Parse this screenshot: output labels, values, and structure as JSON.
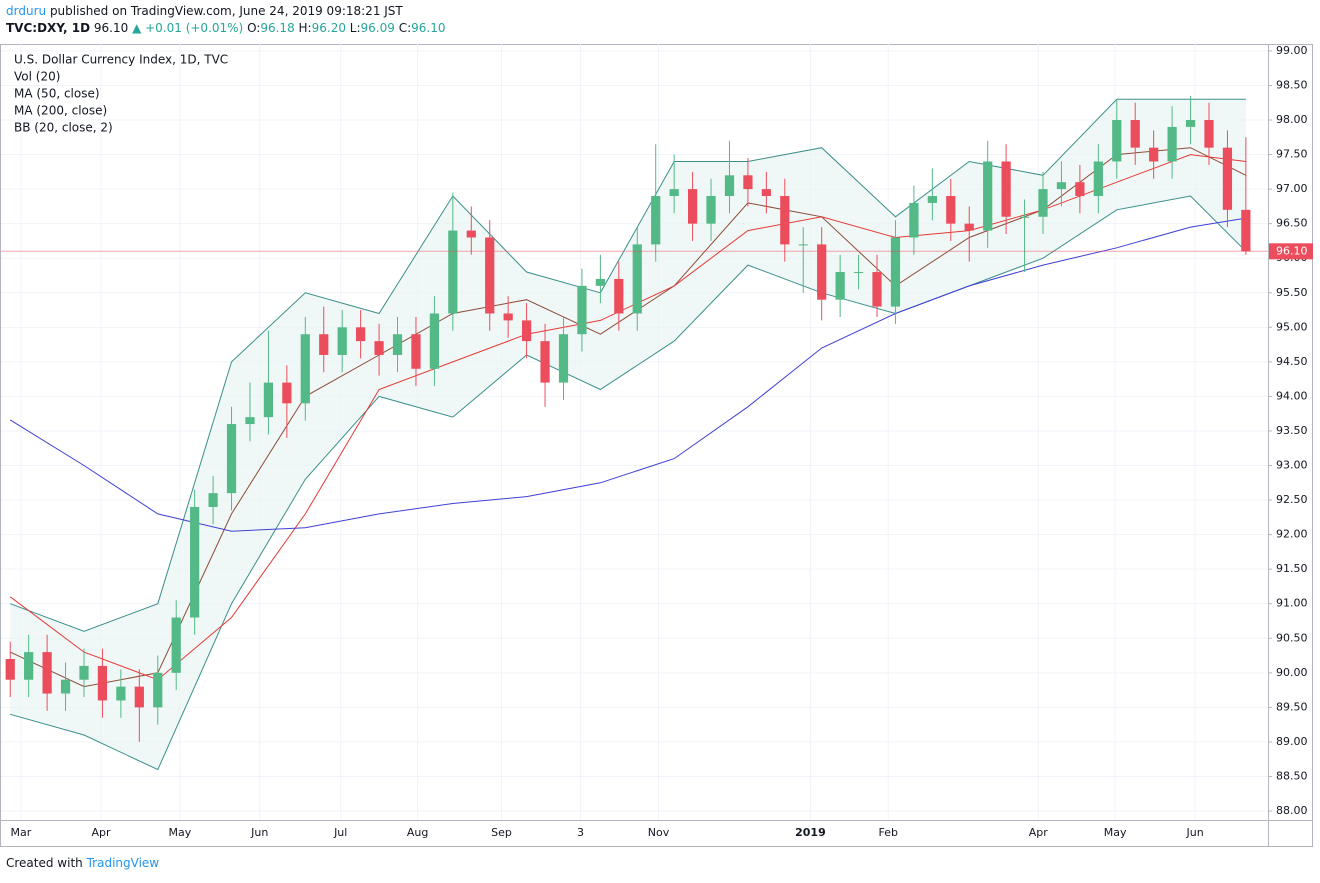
{
  "header": {
    "author": "drduru",
    "published": "published on TradingView.com, June 24, 2019 09:18:21 JST",
    "symbol": "TVC:DXY, 1D",
    "last": "96.10",
    "change": "▲ +0.01 (+0.01%)",
    "ohlc": [
      {
        "key": "O:",
        "value": "96.18"
      },
      {
        "key": "H:",
        "value": "96.20"
      },
      {
        "key": "L:",
        "value": "96.09"
      },
      {
        "key": "C:",
        "value": "96.10"
      }
    ]
  },
  "footer": {
    "created": "Created with",
    "brand": "TradingView"
  },
  "chart_data": {
    "type": "candlestick",
    "title": "U.S. Dollar Currency Index, 1D, TVC",
    "indicators": [
      "Vol (20)"
    ],
    "up_color": "#53b987",
    "down_color": "#eb4d5c",
    "x": [
      0,
      1,
      2,
      3,
      4,
      5,
      6,
      7,
      8,
      9,
      10,
      11,
      12,
      13,
      14,
      15,
      16,
      17,
      18,
      19,
      20,
      21,
      22,
      23,
      24,
      25,
      26,
      27,
      28,
      29,
      30,
      31,
      32,
      33,
      34,
      35,
      36,
      37,
      38,
      39,
      40,
      41,
      42,
      43,
      44,
      45,
      46,
      47,
      48,
      49,
      50,
      51,
      52,
      53,
      54,
      55,
      56,
      57,
      58,
      59,
      60,
      61,
      62,
      63,
      64,
      65,
      66,
      67
    ],
    "open": [
      90.2,
      89.9,
      90.3,
      89.7,
      89.9,
      90.1,
      89.6,
      89.8,
      89.5,
      90.0,
      90.8,
      92.4,
      92.6,
      93.6,
      93.7,
      94.2,
      93.9,
      94.9,
      94.6,
      95.0,
      94.8,
      94.6,
      94.9,
      94.4,
      95.2,
      96.4,
      96.3,
      95.2,
      95.1,
      94.8,
      94.2,
      94.9,
      95.6,
      95.7,
      95.2,
      96.2,
      96.9,
      97.0,
      96.5,
      96.9,
      97.2,
      97.0,
      96.9,
      96.2,
      96.2,
      95.4,
      95.8,
      95.8,
      95.3,
      96.3,
      96.8,
      96.9,
      96.5,
      96.4,
      97.4,
      96.6,
      96.6,
      97.0,
      97.1,
      96.9,
      97.4,
      98.0,
      97.6,
      97.4,
      97.9,
      98.0,
      97.6,
      96.7
    ],
    "high": [
      90.45,
      90.55,
      90.55,
      90.15,
      90.35,
      90.35,
      90.05,
      90.05,
      90.25,
      91.05,
      92.65,
      92.85,
      93.85,
      94.2,
      94.95,
      94.45,
      95.15,
      95.3,
      95.25,
      95.25,
      95.05,
      95.15,
      95.15,
      95.45,
      96.95,
      96.75,
      96.55,
      95.45,
      95.35,
      95.05,
      95.15,
      95.85,
      96.05,
      95.95,
      96.45,
      97.65,
      97.5,
      97.25,
      97.15,
      97.7,
      97.45,
      97.25,
      97.15,
      96.45,
      96.45,
      96.05,
      96.05,
      96.05,
      96.55,
      97.05,
      97.3,
      97.15,
      96.75,
      97.7,
      97.65,
      96.85,
      97.25,
      97.4,
      97.35,
      97.65,
      98.3,
      98.25,
      97.85,
      98.2,
      98.35,
      98.25,
      97.85,
      97.75
    ],
    "low": [
      89.65,
      89.65,
      89.45,
      89.45,
      89.65,
      89.35,
      89.35,
      89.0,
      89.25,
      89.75,
      90.55,
      92.15,
      92.35,
      93.35,
      93.45,
      93.4,
      93.65,
      94.35,
      94.35,
      94.55,
      94.3,
      94.35,
      94.15,
      94.15,
      94.95,
      96.05,
      94.95,
      94.85,
      94.55,
      93.85,
      93.95,
      94.65,
      95.35,
      94.95,
      94.95,
      95.95,
      96.65,
      96.25,
      96.25,
      96.65,
      96.75,
      96.65,
      95.95,
      95.5,
      95.1,
      95.15,
      95.55,
      95.15,
      95.05,
      96.05,
      96.55,
      96.25,
      95.95,
      96.15,
      96.35,
      95.8,
      96.35,
      96.75,
      96.65,
      96.65,
      97.15,
      97.35,
      97.15,
      97.15,
      97.65,
      97.35,
      96.45,
      96.05
    ],
    "close": [
      89.9,
      90.3,
      89.7,
      89.9,
      90.1,
      89.6,
      89.8,
      89.5,
      90.0,
      90.8,
      92.4,
      92.6,
      93.6,
      93.7,
      94.2,
      93.9,
      94.9,
      94.6,
      95.0,
      94.8,
      94.6,
      94.9,
      94.4,
      95.2,
      96.4,
      96.3,
      95.2,
      95.1,
      94.8,
      94.2,
      94.9,
      95.6,
      95.7,
      95.2,
      96.2,
      96.9,
      97.0,
      96.5,
      96.9,
      97.2,
      97.0,
      96.9,
      96.2,
      96.2,
      95.4,
      95.8,
      95.8,
      95.3,
      96.3,
      96.8,
      96.9,
      96.5,
      96.4,
      97.4,
      96.6,
      96.6,
      97.0,
      97.1,
      96.9,
      97.4,
      98.0,
      97.6,
      97.4,
      97.9,
      98.0,
      97.6,
      96.7,
      96.1
    ],
    "lines": [
      {
        "name": "MA (50, close)",
        "color": "#e53935",
        "x": [
          0,
          4,
          8,
          12,
          16,
          20,
          24,
          28,
          32,
          36,
          40,
          44,
          48,
          52,
          56,
          60,
          64,
          67
        ],
        "values": [
          91.1,
          90.3,
          89.9,
          90.8,
          92.3,
          94.1,
          94.5,
          94.9,
          95.1,
          95.6,
          96.4,
          96.6,
          96.3,
          96.4,
          96.7,
          97.1,
          97.5,
          97.4
        ]
      },
      {
        "name": "MA (200, close)",
        "color": "#3f3fd6",
        "x": [
          0,
          4,
          8,
          12,
          16,
          20,
          24,
          28,
          32,
          36,
          40,
          44,
          48,
          52,
          56,
          60,
          64,
          67
        ],
        "values": [
          93.66,
          93.0,
          92.3,
          92.05,
          92.1,
          92.3,
          92.45,
          92.55,
          92.75,
          93.1,
          93.85,
          94.7,
          95.2,
          95.6,
          95.9,
          96.15,
          96.45,
          96.58
        ]
      }
    ],
    "bands": {
      "name": "BB (20, close, 2)",
      "basis_color": "#8d4b36",
      "band_color": "#3a8f8a",
      "fill": "#e6f4f1",
      "x": [
        0,
        4,
        8,
        12,
        16,
        20,
        24,
        28,
        32,
        36,
        40,
        44,
        48,
        52,
        56,
        60,
        64,
        67
      ],
      "basis": [
        90.3,
        89.8,
        90.0,
        92.3,
        94.0,
        94.6,
        95.2,
        95.4,
        94.9,
        95.6,
        96.8,
        96.6,
        95.6,
        96.3,
        96.7,
        97.5,
        97.6,
        97.2
      ],
      "upper": [
        91.0,
        90.6,
        91.0,
        94.5,
        95.5,
        95.2,
        96.9,
        95.8,
        95.5,
        97.4,
        97.4,
        97.6,
        96.6,
        97.4,
        97.2,
        98.3,
        98.3,
        98.3
      ],
      "lower": [
        89.4,
        89.1,
        88.6,
        91.0,
        92.8,
        94.0,
        93.7,
        94.6,
        94.1,
        94.8,
        95.9,
        95.5,
        95.2,
        95.6,
        96.0,
        96.7,
        96.9,
        96.1
      ]
    },
    "last_price": {
      "value": 96.1,
      "label": "96.10"
    },
    "xlim": [
      -0.5,
      68.2
    ],
    "xticks": [
      {
        "value": 0.58,
        "label": "Mar"
      },
      {
        "value": 4.92,
        "label": "Apr"
      },
      {
        "value": 9.2,
        "label": "May"
      },
      {
        "value": 13.53,
        "label": "Jun"
      },
      {
        "value": 17.92,
        "label": "Jul"
      },
      {
        "value": 22.09,
        "label": "Aug"
      },
      {
        "value": 26.64,
        "label": "Sep"
      },
      {
        "value": 30.92,
        "label": "3"
      },
      {
        "value": 35.15,
        "label": "Nov"
      },
      {
        "value": 43.39,
        "label": "2019"
      },
      {
        "value": 47.61,
        "label": "Feb"
      },
      {
        "value": 55.74,
        "label": "Apr"
      },
      {
        "value": 59.91,
        "label": "May"
      },
      {
        "value": 64.25,
        "label": "Jun"
      }
    ],
    "ylim": [
      87.87,
      99.1
    ],
    "yticks": [
      {
        "value": 88,
        "label": "88.00"
      },
      {
        "value": 88.5,
        "label": "88.50"
      },
      {
        "value": 89,
        "label": "89.00"
      },
      {
        "value": 89.5,
        "label": "89.50"
      },
      {
        "value": 90,
        "label": "90.00"
      },
      {
        "value": 90.5,
        "label": "90.50"
      },
      {
        "value": 91,
        "label": "91.00"
      },
      {
        "value": 91.5,
        "label": "91.50"
      },
      {
        "value": 92,
        "label": "92.00"
      },
      {
        "value": 92.5,
        "label": "92.50"
      },
      {
        "value": 93,
        "label": "93.00"
      },
      {
        "value": 93.5,
        "label": "93.50"
      },
      {
        "value": 94,
        "label": "94.00"
      },
      {
        "value": 94.5,
        "label": "94.50"
      },
      {
        "value": 95,
        "label": "95.00"
      },
      {
        "value": 95.5,
        "label": "95.50"
      },
      {
        "value": 96,
        "label": "96.00"
      },
      {
        "value": 96.5,
        "label": "96.50"
      },
      {
        "value": 97,
        "label": "97.00"
      },
      {
        "value": 97.5,
        "label": "97.50"
      },
      {
        "value": 98,
        "label": "98.00"
      },
      {
        "value": 98.5,
        "label": "98.50"
      },
      {
        "value": 99,
        "label": "99.00"
      }
    ],
    "grid": true
  }
}
